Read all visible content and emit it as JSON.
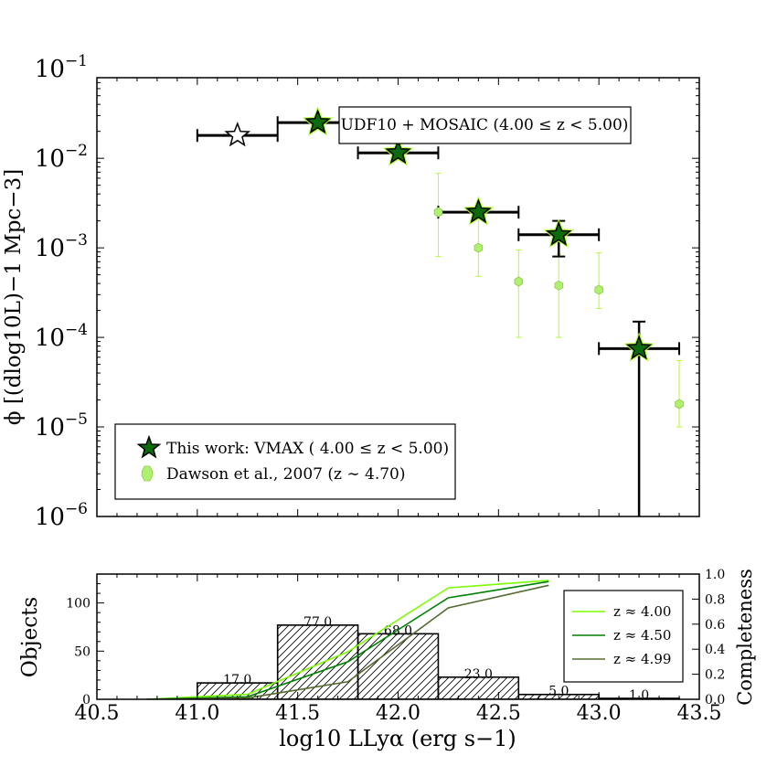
{
  "chart_data": [
    {
      "type": "scatter",
      "panel": "luminosity-function",
      "ylabel": "ϕ [(dlog10L)−1 Mpc−3]",
      "xlim": [
        40.5,
        43.5
      ],
      "ylim_log10": [
        -6,
        -1.1
      ],
      "yscale": "log",
      "y_tick_labels": [
        "10−6",
        "10−5",
        "10−4",
        "10−3",
        "10−2",
        "10−1"
      ],
      "annotation": "UDF10 + MOSAIC (4.00 ≤ z < 5.00)",
      "legend": {
        "placement": "lower-left",
        "entries": [
          "This work: VMAX ( 4.00 ≤ z < 5.00)",
          "Dawson et al., 2007 (z ∼ 4.70)"
        ]
      },
      "series": [
        {
          "name": "This work: VMAX ( 4.00 ≤ z < 5.00)",
          "marker": "star",
          "color": "#0b6b0b",
          "glow": "#adff2f",
          "points": [
            {
              "x": 41.2,
              "y": 0.018,
              "xerr": [
                41.0,
                41.4
              ],
              "open": true
            },
            {
              "x": 41.6,
              "y": 0.025,
              "xerr": [
                41.4,
                41.8
              ]
            },
            {
              "x": 42.0,
              "y": 0.0115,
              "xerr": [
                41.8,
                42.2
              ]
            },
            {
              "x": 42.4,
              "y": 0.0025,
              "xerr": [
                42.2,
                42.6
              ]
            },
            {
              "x": 42.8,
              "y": 0.0014,
              "xerr": [
                42.6,
                43.0
              ],
              "yerr": [
                0.0008,
                0.002
              ]
            },
            {
              "x": 43.2,
              "y": 7.5e-05,
              "xerr": [
                43.0,
                43.4
              ],
              "yerr": [
                1e-06,
                0.00015
              ]
            }
          ]
        },
        {
          "name": "Dawson et al., 2007 (z ∼ 4.70)",
          "marker": "hexagon",
          "color": "#adff2f",
          "points": [
            {
              "x": 42.2,
              "y": 0.0025,
              "yerr": [
                0.0008,
                0.0068
              ]
            },
            {
              "x": 42.4,
              "y": 0.001,
              "yerr": [
                0.00048,
                0.0021
              ]
            },
            {
              "x": 42.6,
              "y": 0.00042,
              "yerr": [
                0.0001,
                0.00095
              ]
            },
            {
              "x": 42.8,
              "y": 0.00038,
              "yerr": [
                0.0001,
                0.00085
              ]
            },
            {
              "x": 43.0,
              "y": 0.00034,
              "yerr": [
                0.00021,
                0.00088
              ]
            },
            {
              "x": 43.4,
              "y": 1.8e-05,
              "yerr": [
                1e-05,
                5.5e-05
              ]
            }
          ]
        }
      ]
    },
    {
      "type": "bar",
      "panel": "histogram-completeness",
      "xlabel": "log10 LLyα (erg s−1)",
      "ylabel": "Objects",
      "y2label": "Completeness",
      "xlim": [
        40.5,
        43.5
      ],
      "ylim": [
        0,
        130
      ],
      "y2lim": [
        0,
        1.0
      ],
      "x_ticks": [
        "40.5",
        "41.0",
        "41.5",
        "42.0",
        "42.5",
        "43.0",
        "43.5"
      ],
      "y_ticks": [
        "0",
        "50",
        "100"
      ],
      "y2_ticks": [
        "0.0",
        "0.2",
        "0.4",
        "0.6",
        "0.8",
        "1.0"
      ],
      "bins": [
        {
          "x0": 41.0,
          "x1": 41.4,
          "count": 17,
          "label": "17.0"
        },
        {
          "x0": 41.4,
          "x1": 41.8,
          "count": 77,
          "label": "77.0"
        },
        {
          "x0": 41.8,
          "x1": 42.2,
          "count": 68,
          "label": "68.0"
        },
        {
          "x0": 42.2,
          "x1": 42.6,
          "count": 23,
          "label": "23.0"
        },
        {
          "x0": 42.6,
          "x1": 43.0,
          "count": 5,
          "label": "5.0"
        },
        {
          "x0": 43.0,
          "x1": 43.4,
          "count": 1,
          "label": "1.0"
        }
      ],
      "completeness_series": [
        {
          "name": "z ≈ 4.00",
          "color": "#7cfc00",
          "x": [
            40.75,
            41.25,
            41.75,
            42.25,
            42.75
          ],
          "y": [
            0.0,
            0.04,
            0.38,
            0.89,
            0.95
          ]
        },
        {
          "name": "z ≈ 4.50",
          "color": "#008000",
          "x": [
            40.75,
            41.25,
            41.75,
            42.25,
            42.75
          ],
          "y": [
            0.0,
            0.02,
            0.3,
            0.81,
            0.94
          ]
        },
        {
          "name": "z ≈ 4.99",
          "color": "#556b2f",
          "x": [
            40.75,
            41.25,
            41.75,
            42.25,
            42.75
          ],
          "y": [
            0.0,
            0.01,
            0.14,
            0.73,
            0.91
          ]
        }
      ]
    }
  ]
}
